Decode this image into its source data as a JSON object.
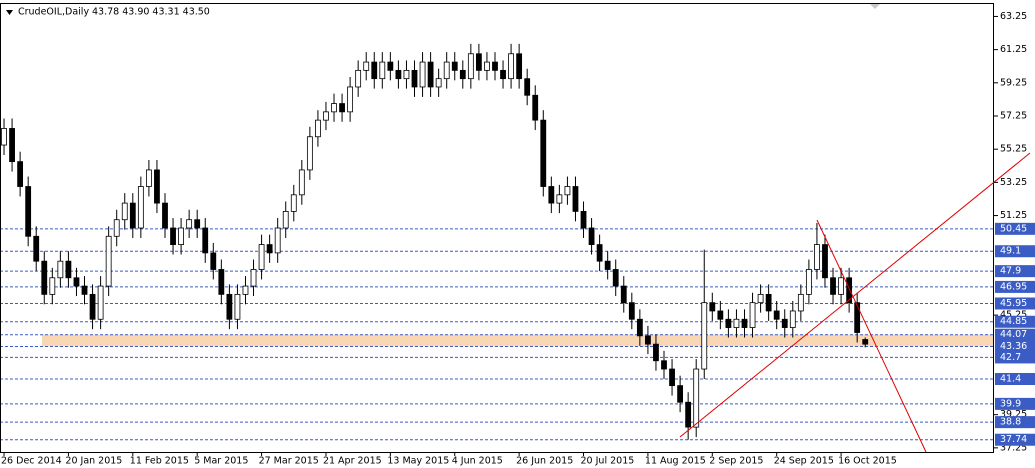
{
  "chart_data": {
    "type": "candlestick",
    "title": "CrudeOIL,Daily",
    "subtitle": "43.78 43.90 43.31 43.50",
    "up_color": "#ffffff",
    "down_color": "#000000",
    "line_color": "#000000",
    "level_color": "#3a5cc4",
    "zone_color": "#f9d6b4",
    "trend_color": "#e00000",
    "ylim": [
      37,
      64
    ],
    "yticks": [
      63.25,
      61.25,
      59.25,
      57.25,
      55.25,
      53.25,
      51.25,
      45.25,
      39.25,
      37.25
    ],
    "levels": [
      50.45,
      49.1,
      47.9,
      46.95,
      45.95,
      44.85,
      44.07,
      43.36,
      42.7,
      41.4,
      39.9,
      38.8,
      37.74
    ],
    "xlim": [
      -0.5,
      123
    ],
    "xticks": [
      {
        "value": 0,
        "label": "26 Dec 2014"
      },
      {
        "value": 8,
        "label": "20 Jan 2015"
      },
      {
        "value": 16,
        "label": "11 Feb 2015"
      },
      {
        "value": 24,
        "label": "5 Mar 2015"
      },
      {
        "value": 32,
        "label": "27 Mar 2015"
      },
      {
        "value": 40,
        "label": "21 Apr 2015"
      },
      {
        "value": 48,
        "label": "13 May 2015"
      },
      {
        "value": 56,
        "label": "4 Jun 2015"
      },
      {
        "value": 64,
        "label": "26 Jun 2015"
      },
      {
        "value": 72,
        "label": "20 Jul 2015"
      },
      {
        "value": 80,
        "label": "11 Aug 2015"
      },
      {
        "value": 88,
        "label": "2 Sep 2015"
      },
      {
        "value": 96,
        "label": "24 Sep 2015"
      },
      {
        "value": 104,
        "label": "16 Oct 2015"
      }
    ],
    "open": [
      55.5,
      56.5,
      54.5,
      53,
      50,
      48.5,
      46.5,
      47.5,
      48.5,
      47.5,
      47,
      46.5,
      45,
      47,
      50,
      51,
      52,
      50.5,
      53,
      54,
      52,
      50.5,
      49.5,
      50.5,
      51,
      50.5,
      49,
      48,
      46.5,
      45,
      46.5,
      47,
      48,
      49.5,
      49,
      50.5,
      51.5,
      52.5,
      54,
      56,
      57,
      57.5,
      58,
      57.5,
      59,
      60,
      60.5,
      59.5,
      60.5,
      60,
      59.5,
      60,
      59,
      60.5,
      59,
      59.5,
      60.5,
      60,
      59.5,
      61,
      60,
      60.5,
      60,
      59.5,
      61,
      59.5,
      58.5,
      57,
      53,
      52,
      52.5,
      53,
      51.5,
      50.5,
      49.5,
      48.5,
      48,
      47,
      46,
      45,
      44,
      43.5,
      42.5,
      42,
      41,
      40,
      38.5,
      42,
      46,
      45.5,
      45,
      44.5,
      45,
      44.5,
      46,
      46.5,
      45.5,
      45,
      44.5,
      45.5,
      46.5,
      48,
      49.5,
      47.5,
      46.5,
      47.5,
      46,
      43.78
    ],
    "high": [
      57.1,
      57.1,
      55.1,
      53.6,
      50.6,
      49.1,
      48.1,
      49.1,
      49.1,
      48.1,
      47.6,
      47.1,
      47.6,
      50.6,
      51.6,
      52.6,
      52.6,
      53.6,
      54.6,
      54.6,
      52.6,
      51.1,
      51.1,
      51.6,
      51.6,
      51.1,
      49.6,
      48.6,
      47.1,
      47.1,
      47.6,
      48.6,
      50.1,
      50.1,
      51.1,
      52.1,
      53.1,
      54.6,
      56.6,
      57.6,
      58.1,
      58.6,
      58.6,
      59.6,
      60.6,
      61.1,
      61.1,
      61.1,
      61.1,
      60.6,
      60.6,
      60.6,
      61.1,
      61.1,
      60.1,
      61.1,
      61.1,
      60.6,
      61.6,
      61.6,
      61.1,
      61.1,
      60.6,
      61.6,
      61.6,
      60.1,
      59.1,
      57.6,
      53.6,
      53.1,
      53.6,
      53.6,
      52.1,
      51.1,
      50.1,
      49.1,
      48.6,
      47.6,
      46.6,
      45.6,
      44.6,
      44.1,
      43.1,
      42.6,
      41.6,
      40.6,
      42.6,
      49.2,
      46.6,
      46.1,
      45.6,
      45.6,
      45.6,
      46.6,
      47.1,
      47.1,
      46.1,
      45.6,
      46.1,
      47.1,
      48.6,
      50.8,
      50.1,
      48.1,
      48.1,
      48.1,
      46.6,
      43.9
    ],
    "low": [
      54.9,
      53.9,
      52.4,
      49.4,
      47.9,
      45.9,
      45.9,
      46.9,
      46.9,
      46.4,
      45.9,
      44.4,
      44.4,
      46.4,
      49.4,
      50.4,
      49.9,
      49.9,
      52.4,
      51.4,
      49.9,
      48.9,
      48.9,
      49.9,
      49.9,
      48.4,
      47.4,
      45.9,
      44.4,
      44.4,
      45.9,
      46.4,
      47.4,
      48.4,
      48.4,
      49.9,
      50.9,
      51.9,
      53.4,
      55.4,
      56.4,
      56.9,
      56.9,
      56.9,
      58.4,
      59.4,
      58.9,
      58.9,
      59.4,
      58.9,
      58.9,
      58.4,
      58.4,
      58.4,
      58.4,
      58.9,
      59.4,
      58.9,
      58.9,
      59.4,
      59.4,
      59.4,
      58.9,
      58.9,
      58.9,
      57.9,
      56.4,
      52.4,
      51.4,
      51.4,
      51.9,
      50.9,
      49.9,
      48.9,
      47.9,
      47.4,
      46.4,
      45.4,
      44.4,
      43.4,
      42.9,
      41.9,
      41.4,
      40.4,
      39.4,
      37.74,
      37.9,
      41.4,
      44.9,
      44.4,
      43.9,
      43.9,
      43.9,
      43.9,
      45.4,
      44.9,
      44.4,
      43.9,
      43.9,
      44.9,
      45.9,
      47.4,
      46.9,
      45.9,
      45.9,
      45.4,
      43.6,
      43.31
    ],
    "close": [
      56.5,
      54.5,
      53,
      50,
      48.5,
      46.5,
      47.5,
      48.5,
      47.5,
      47,
      46.5,
      45,
      47,
      50,
      51,
      52,
      50.5,
      53,
      54,
      52,
      50.5,
      49.5,
      50.5,
      51,
      50.5,
      49,
      48,
      46.5,
      45,
      46.5,
      47,
      48,
      49.5,
      49,
      50.5,
      51.5,
      52.5,
      54,
      56,
      57,
      57.5,
      58,
      57.5,
      59,
      60,
      60.5,
      59.5,
      60.5,
      60,
      59.5,
      60,
      59,
      60.5,
      59,
      59.5,
      60.5,
      60,
      59.5,
      61,
      60,
      60.5,
      60,
      59.5,
      61,
      59.5,
      58.5,
      57,
      53,
      52,
      52.5,
      53,
      51.5,
      50.5,
      49.5,
      48.5,
      48,
      47,
      46,
      45,
      44,
      43.5,
      42.5,
      42,
      41,
      40,
      38.5,
      42,
      46,
      45.5,
      45,
      44.5,
      45,
      44.5,
      46,
      46.5,
      45.5,
      45,
      44.5,
      45.5,
      46.5,
      48,
      49.5,
      47.5,
      46.5,
      47.5,
      46,
      44.2,
      43.5
    ]
  }
}
